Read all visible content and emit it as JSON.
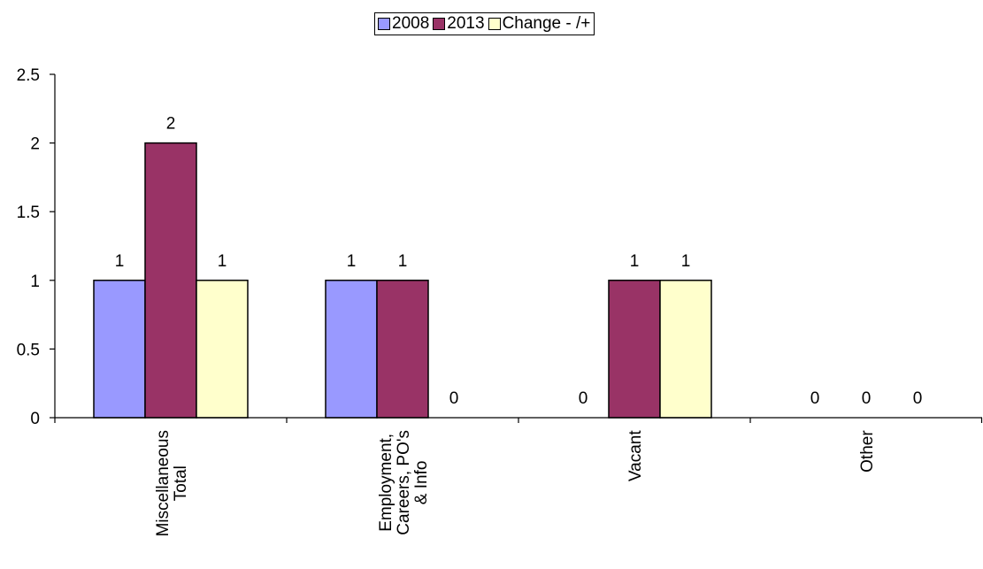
{
  "chart_data": {
    "type": "bar",
    "categories": [
      "Miscellaneous\nTotal",
      "Employment,\nCareers, PO's\n& Info",
      "Vacant",
      "Other"
    ],
    "series": [
      {
        "name": "2008",
        "values": [
          1,
          1,
          0,
          0
        ],
        "labels": [
          "1",
          "1",
          "",
          "0"
        ],
        "color": "#9999ff"
      },
      {
        "name": "2013",
        "values": [
          2,
          1,
          1,
          0
        ],
        "labels": [
          "2",
          "1",
          "1",
          "0"
        ],
        "color": "#993366"
      },
      {
        "name": "Change - /+",
        "values": [
          1,
          0,
          1,
          0
        ],
        "labels": [
          "1",
          "0",
          "1",
          "0"
        ],
        "color": "#ffffcc"
      }
    ],
    "vacant_2008_label": "0",
    "ylim": [
      0,
      2.5
    ],
    "yticks": [
      "0",
      "0.5",
      "1",
      "1.5",
      "2",
      "2.5"
    ],
    "ytick_values": [
      0,
      0.5,
      1,
      1.5,
      2,
      2.5
    ],
    "legend_position": "top-center",
    "grid": false
  }
}
